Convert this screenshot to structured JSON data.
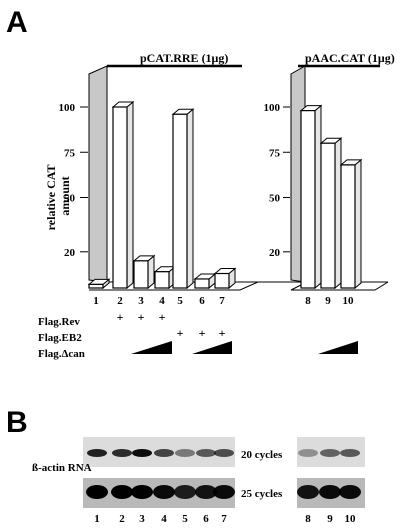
{
  "panels": {
    "a_label": "A",
    "b_label": "B"
  },
  "chart_data": {
    "type": "bar",
    "ylabel": "relative CAT amount",
    "yticks": [
      20,
      50,
      75,
      100
    ],
    "ylim": [
      0,
      120
    ],
    "groups": [
      {
        "label": "pCAT.RRE (1μg)",
        "lanes": [
          "1",
          "2",
          "3",
          "4",
          "5",
          "6",
          "7"
        ]
      },
      {
        "label": "pAAC.CAT (1μg)",
        "lanes": [
          "8",
          "9",
          "10"
        ]
      }
    ],
    "categories": [
      "1",
      "2",
      "3",
      "4",
      "5",
      "6",
      "7",
      "8",
      "9",
      "10"
    ],
    "values": [
      2,
      100,
      15,
      9,
      96,
      5,
      8,
      98,
      80,
      68
    ],
    "treatments": [
      {
        "label": "Flag.Rev",
        "marks": [
          "",
          "+",
          "+",
          "+",
          "",
          "",
          "",
          "",
          "",
          ""
        ]
      },
      {
        "label": "Flag.EB2",
        "marks": [
          "",
          "",
          "",
          "",
          "+",
          "+",
          "+",
          "",
          "",
          ""
        ]
      },
      {
        "label": "Flag.Δcan",
        "ramps": [
          [
            3,
            4
          ],
          [
            6,
            7
          ],
          [
            9,
            10
          ]
        ]
      }
    ]
  },
  "blot": {
    "row_label": "ß-actin RNA",
    "band_labels": [
      "20 cycles",
      "25 cycles"
    ],
    "lanes": [
      "1",
      "2",
      "3",
      "4",
      "5",
      "6",
      "7",
      "8",
      "9",
      "10"
    ],
    "intensity_20": [
      0.85,
      0.8,
      0.95,
      0.7,
      0.45,
      0.6,
      0.65,
      0.35,
      0.55,
      0.6
    ],
    "intensity_25": [
      1,
      1,
      1,
      0.95,
      0.85,
      0.9,
      0.95,
      0.9,
      0.95,
      0.95
    ]
  },
  "colors": {
    "bar_white": "#ffffff",
    "bar_side": "#e6e6e6",
    "back_panel": "#c8c8c8",
    "ink": "#000000"
  }
}
